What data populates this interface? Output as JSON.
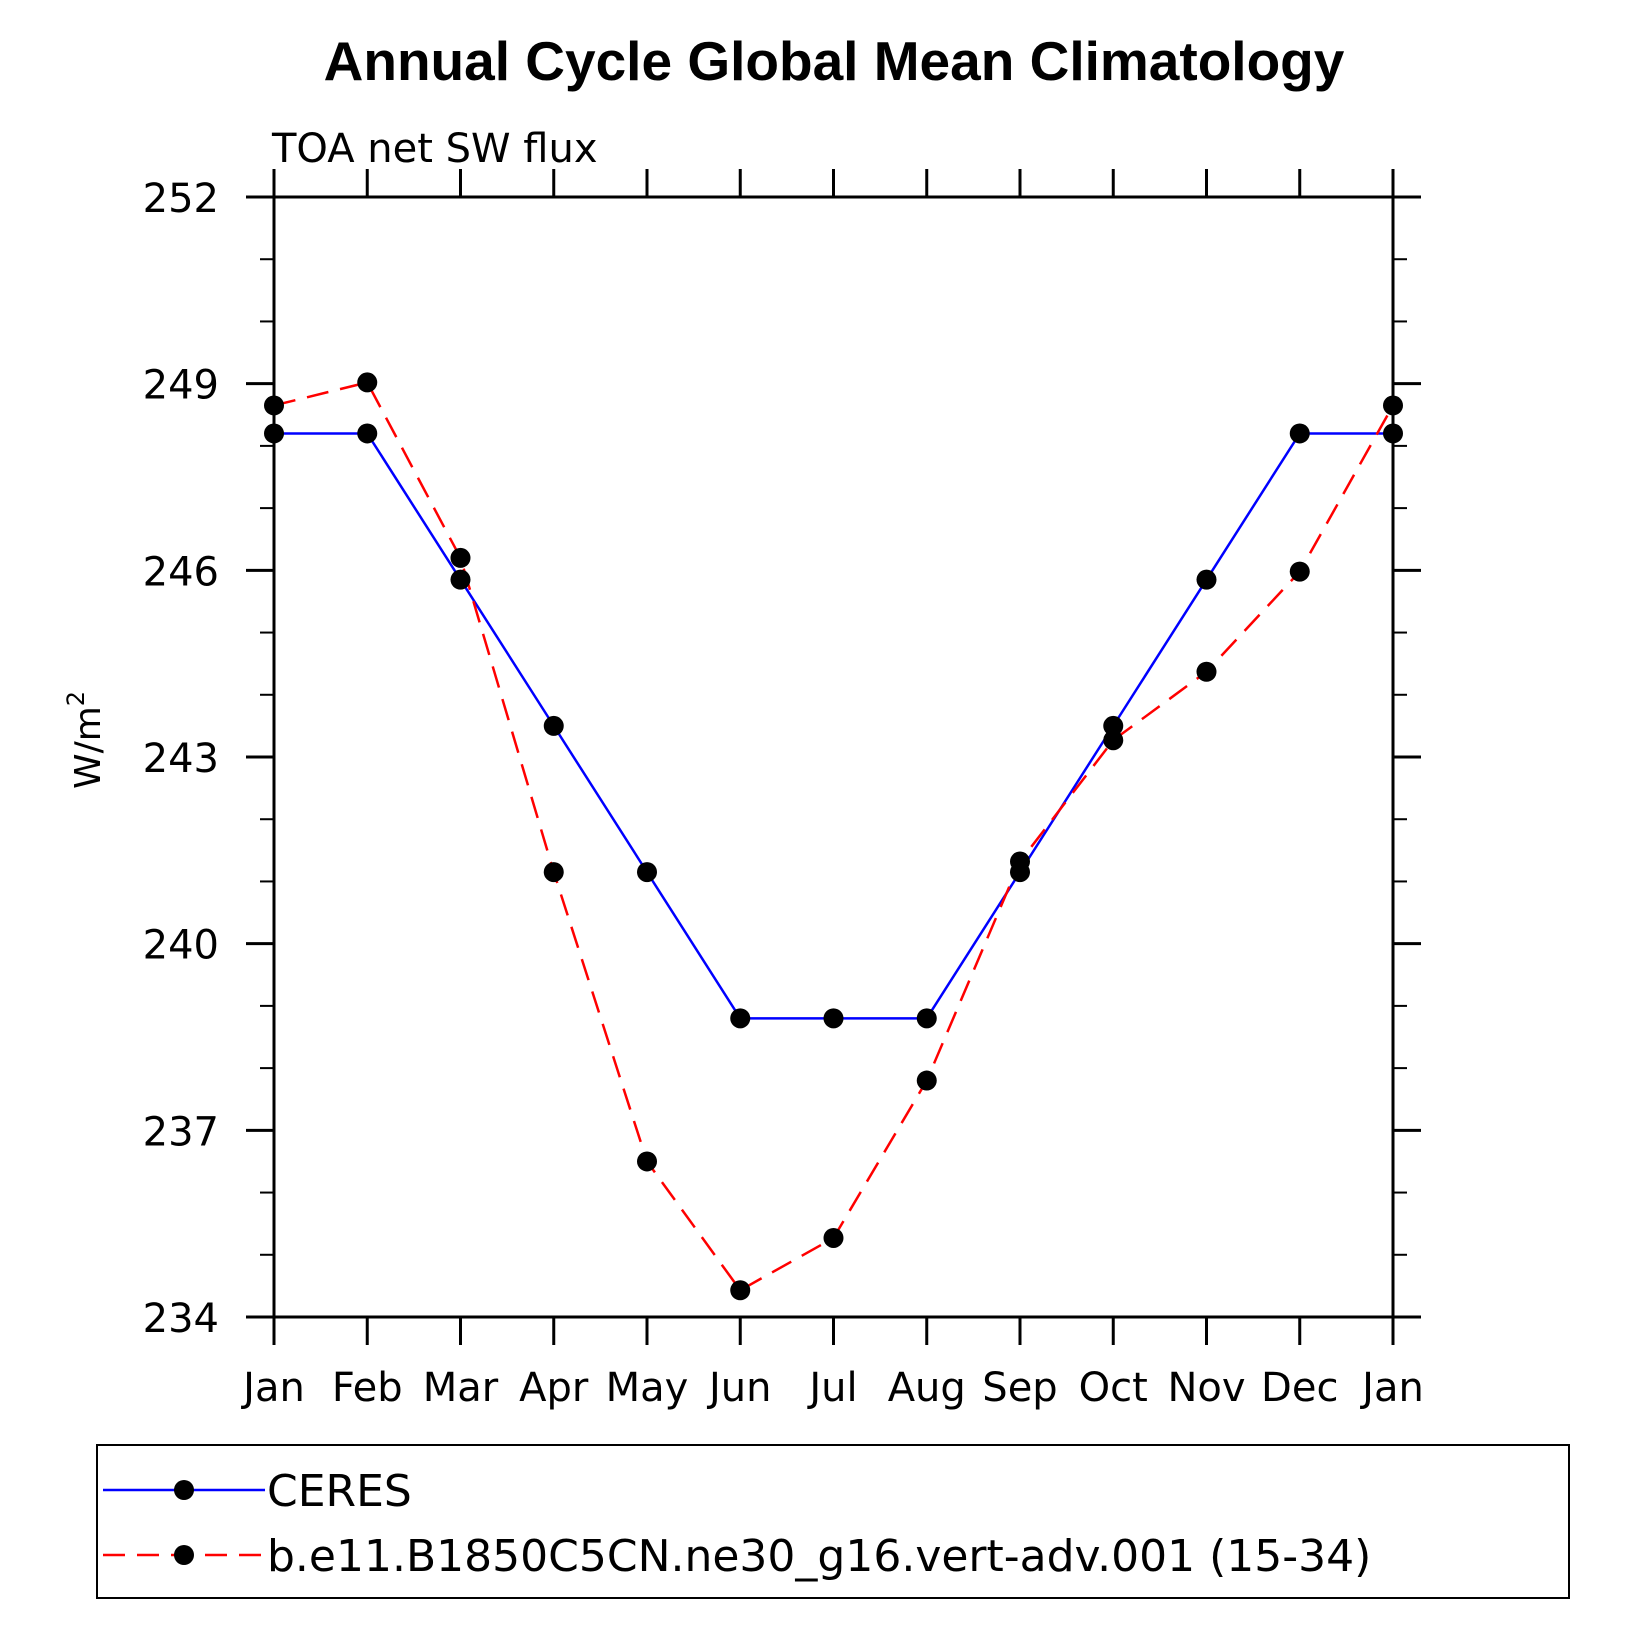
{
  "chart_data": {
    "type": "line",
    "title": "Annual Cycle Global Mean Climatology",
    "subtitle": "TOA net SW flux",
    "ylabel": "W/m",
    "ylabel_superscript": "2",
    "xlabel": "",
    "categories": [
      "Jan",
      "Feb",
      "Mar",
      "Apr",
      "May",
      "Jun",
      "Jul",
      "Aug",
      "Sep",
      "Oct",
      "Nov",
      "Dec",
      "Jan"
    ],
    "ylim": [
      234,
      252
    ],
    "yticks": [
      "252",
      "249",
      "246",
      "243",
      "240",
      "237",
      "234"
    ],
    "series": [
      {
        "name": "CERES",
        "color": "#0000ff",
        "dashed": false,
        "values": [
          248.2,
          248.2,
          245.85,
          243.5,
          241.15,
          238.8,
          238.8,
          238.8,
          241.15,
          243.5,
          245.85,
          248.2,
          248.2
        ]
      },
      {
        "name": "b.e11.B1850C5CN.ne30_g16.vert-adv.001 (15-34)",
        "color": "#ff0000",
        "dashed": true,
        "values": [
          248.65,
          249.02,
          246.2,
          241.15,
          236.5,
          234.43,
          235.27,
          237.8,
          241.32,
          243.27,
          244.37,
          245.98,
          248.65
        ]
      }
    ],
    "legend_position": "bottom"
  }
}
